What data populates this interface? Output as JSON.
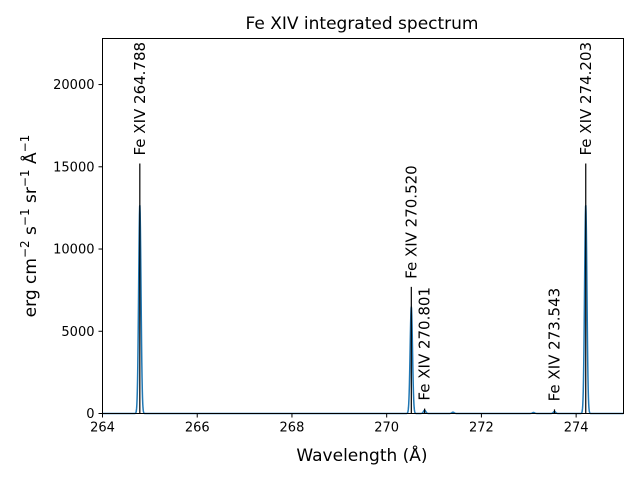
{
  "chart_data": {
    "type": "line",
    "title": "Fe XIV integrated spectrum",
    "xlabel": "Wavelength (Å)",
    "ylabel_parts": {
      "a": "erg cm",
      "b": "−2",
      "c": " s",
      "d": "−1",
      "e": " sr",
      "f": "−1",
      "g": " Å",
      "h": "−1"
    },
    "xlim": [
      264,
      275
    ],
    "ylim": [
      0,
      22800
    ],
    "x_ticks": [
      264,
      266,
      268,
      270,
      272,
      274
    ],
    "x_tick_labels": [
      "264",
      "266",
      "268",
      "270",
      "272",
      "274"
    ],
    "y_ticks": [
      0,
      5000,
      10000,
      15000,
      20000
    ],
    "y_tick_labels": [
      "0",
      "5000",
      "10000",
      "15000",
      "20000"
    ],
    "line_width": 0.025,
    "series": [
      {
        "color": "#1f77b4",
        "peaks": [
          {
            "center": 264.788,
            "height": 12700
          },
          {
            "center": 270.52,
            "height": 6500
          },
          {
            "center": 270.801,
            "height": 200
          },
          {
            "center": 271.4,
            "height": 80
          },
          {
            "center": 273.1,
            "height": 60
          },
          {
            "center": 273.543,
            "height": 120
          },
          {
            "center": 274.203,
            "height": 12700
          }
        ]
      }
    ],
    "annotations": [
      {
        "label": "Fe XIV  264.788",
        "x": 264.788,
        "y": 15200
      },
      {
        "label": "Fe XIV  270.520",
        "x": 270.52,
        "y": 7700
      },
      {
        "label": "Fe XIV  270.801",
        "x": 270.801,
        "y": 300
      },
      {
        "label": "Fe XIV  273.543",
        "x": 273.543,
        "y": 250
      },
      {
        "label": "Fe XIV  274.203",
        "x": 274.203,
        "y": 15200
      }
    ]
  }
}
